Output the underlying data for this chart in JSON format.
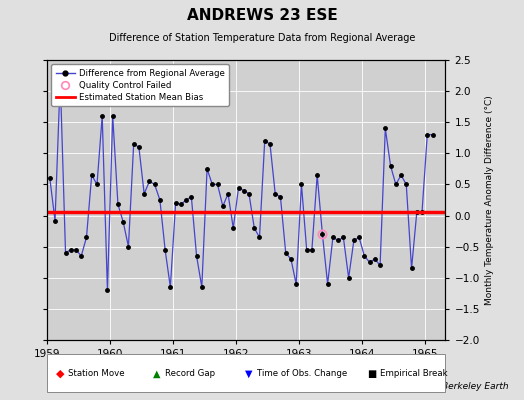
{
  "title": "ANDREWS 23 ESE",
  "subtitle": "Difference of Station Temperature Data from Regional Average",
  "ylabel": "Monthly Temperature Anomaly Difference (°C)",
  "xlim": [
    1959.0,
    1965.33
  ],
  "ylim": [
    -2.0,
    2.5
  ],
  "yticks": [
    -2.0,
    -1.5,
    -1.0,
    -0.5,
    0.0,
    0.5,
    1.0,
    1.5,
    2.0,
    2.5
  ],
  "xticks": [
    1959,
    1960,
    1961,
    1962,
    1963,
    1964,
    1965
  ],
  "bias_value": 0.05,
  "background_color": "#e0e0e0",
  "plot_bg_color": "#d0d0d0",
  "line_color": "#4444cc",
  "marker_color": "black",
  "bias_color": "red",
  "qc_fail_index": 52,
  "times": [
    1959.042,
    1959.125,
    1959.208,
    1959.292,
    1959.375,
    1959.458,
    1959.542,
    1959.625,
    1959.708,
    1959.792,
    1959.875,
    1959.958,
    1960.042,
    1960.125,
    1960.208,
    1960.292,
    1960.375,
    1960.458,
    1960.542,
    1960.625,
    1960.708,
    1960.792,
    1960.875,
    1960.958,
    1961.042,
    1961.125,
    1961.208,
    1961.292,
    1961.375,
    1961.458,
    1961.542,
    1961.625,
    1961.708,
    1961.792,
    1961.875,
    1961.958,
    1962.042,
    1962.125,
    1962.208,
    1962.292,
    1962.375,
    1962.458,
    1962.542,
    1962.625,
    1962.708,
    1962.792,
    1962.875,
    1962.958,
    1963.042,
    1963.125,
    1963.208,
    1963.292,
    1963.375,
    1963.458,
    1963.542,
    1963.625,
    1963.708,
    1963.792,
    1963.875,
    1963.958,
    1964.042,
    1964.125,
    1964.208,
    1964.292,
    1964.375,
    1964.458,
    1964.542,
    1964.625,
    1964.708,
    1964.792,
    1964.875,
    1964.958,
    1965.042,
    1965.125
  ],
  "values": [
    0.6,
    -0.08,
    2.2,
    -0.6,
    -0.55,
    -0.55,
    -0.65,
    -0.35,
    0.65,
    0.5,
    1.6,
    -1.2,
    1.6,
    0.18,
    -0.1,
    -0.5,
    1.15,
    1.1,
    0.35,
    0.55,
    0.5,
    0.25,
    -0.55,
    -1.15,
    0.2,
    0.18,
    0.25,
    0.3,
    -0.65,
    -1.15,
    0.75,
    0.5,
    0.5,
    0.15,
    0.35,
    -0.2,
    0.45,
    0.4,
    0.35,
    -0.2,
    -0.35,
    1.2,
    1.15,
    0.35,
    0.3,
    -0.6,
    -0.7,
    -1.1,
    0.5,
    -0.55,
    -0.55,
    0.65,
    -0.3,
    -1.1,
    -0.35,
    -0.4,
    -0.35,
    -1.0,
    -0.4,
    -0.35,
    -0.65,
    -0.75,
    -0.7,
    -0.8,
    1.4,
    0.8,
    0.5,
    0.65,
    0.5,
    -0.85,
    0.05,
    0.05,
    1.3,
    1.3
  ]
}
